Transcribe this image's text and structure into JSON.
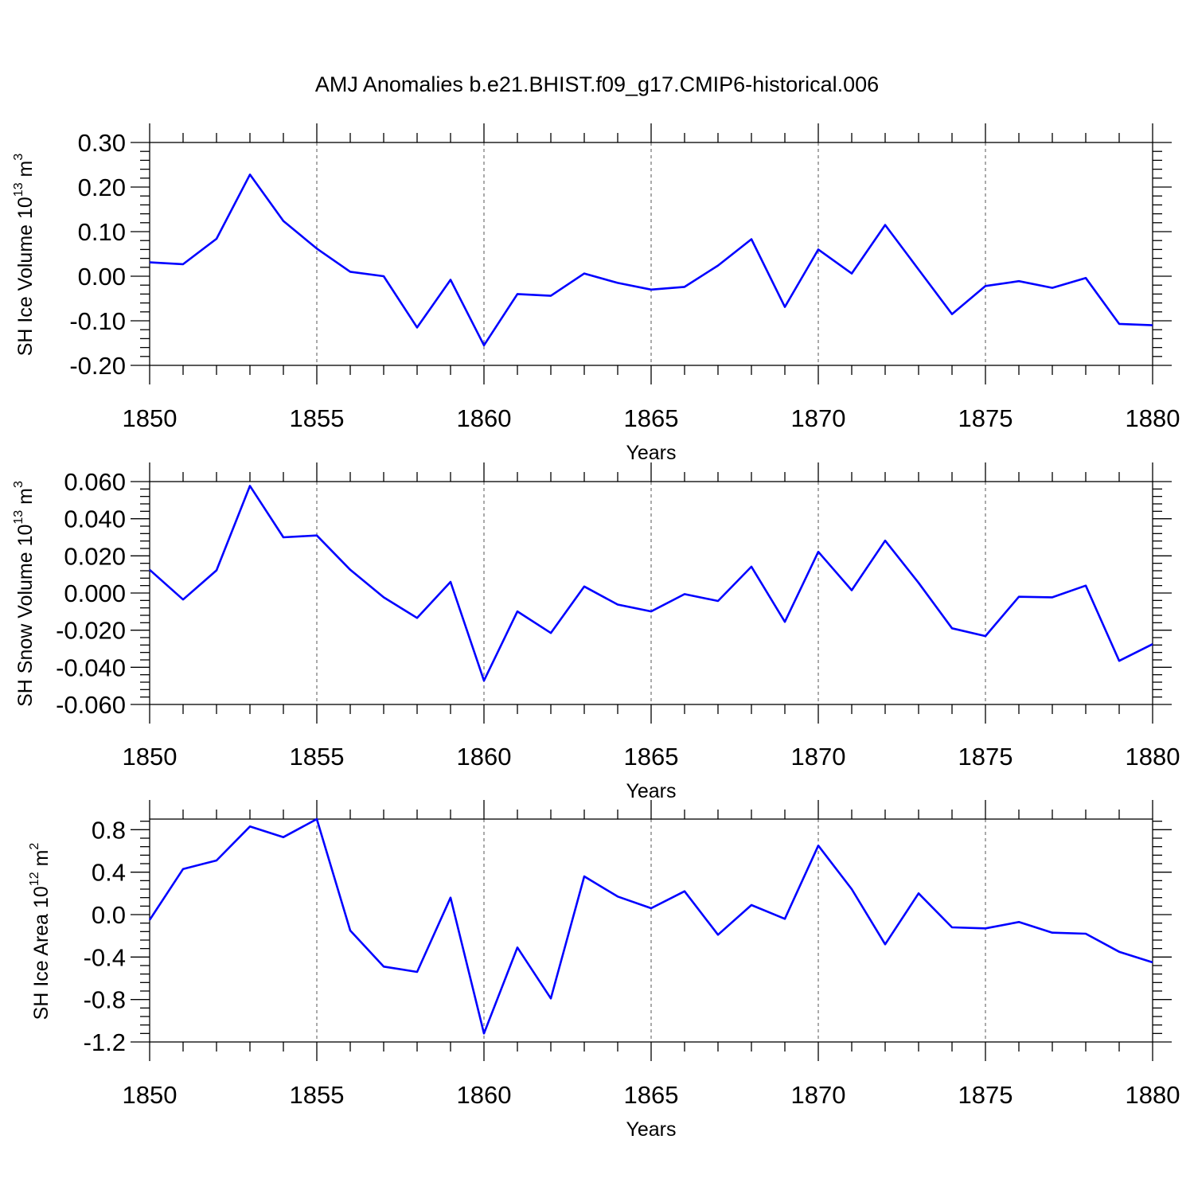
{
  "title": "AMJ Anomalies b.e21.BHIST.f09_g17.CMIP6-historical.006",
  "chart_data": [
    {
      "type": "line",
      "title": "AMJ Anomalies b.e21.BHIST.f09_g17.CMIP6-historical.006",
      "xlabel": "Years",
      "ylabel": "SH Ice Volume",
      "ylabel_units": {
        "base": "10",
        "exp": "13",
        "unit": "m",
        "unit_exp": "3"
      },
      "x": [
        1850,
        1851,
        1852,
        1853,
        1854,
        1855,
        1856,
        1857,
        1858,
        1859,
        1860,
        1861,
        1862,
        1863,
        1864,
        1865,
        1866,
        1867,
        1868,
        1869,
        1870,
        1871,
        1872,
        1873,
        1874,
        1875,
        1876,
        1877,
        1878,
        1879,
        1880
      ],
      "values": [
        0.031,
        0.027,
        0.084,
        0.228,
        0.124,
        0.062,
        0.01,
        0.0,
        -0.115,
        -0.008,
        -0.155,
        -0.04,
        -0.044,
        0.006,
        -0.015,
        -0.03,
        -0.024,
        0.024,
        0.083,
        -0.069,
        0.06,
        0.006,
        0.115,
        0.015,
        -0.085,
        -0.022,
        -0.011,
        -0.026,
        -0.004,
        -0.107,
        -0.11
      ],
      "xlim": [
        1850,
        1880
      ],
      "ylim": [
        -0.2,
        0.3
      ],
      "xticks": [
        "1850",
        "1855",
        "1860",
        "1865",
        "1870",
        "1875",
        "1880"
      ],
      "yticks": [
        "0.30",
        "0.20",
        "0.10",
        "0.00",
        "-0.10",
        "-0.20"
      ],
      "ytick_values": [
        0.3,
        0.2,
        0.1,
        0.0,
        -0.1,
        -0.2
      ],
      "grid": "vertical-dashed",
      "color": "#0000ff"
    },
    {
      "type": "line",
      "xlabel": "Years",
      "ylabel": "SH Snow Volume",
      "ylabel_units": {
        "base": "10",
        "exp": "13",
        "unit": "m",
        "unit_exp": "3"
      },
      "x": [
        1850,
        1851,
        1852,
        1853,
        1854,
        1855,
        1856,
        1857,
        1858,
        1859,
        1860,
        1861,
        1862,
        1863,
        1864,
        1865,
        1866,
        1867,
        1868,
        1869,
        1870,
        1871,
        1872,
        1873,
        1874,
        1875,
        1876,
        1877,
        1878,
        1879,
        1880
      ],
      "values": [
        0.0125,
        -0.0035,
        0.0122,
        0.0577,
        0.03,
        0.031,
        0.0125,
        -0.0023,
        -0.0134,
        0.006,
        -0.0472,
        -0.0099,
        -0.0215,
        0.0035,
        -0.0062,
        -0.0099,
        -0.0006,
        -0.0043,
        0.0142,
        -0.0155,
        0.0222,
        0.0015,
        0.0282,
        0.0055,
        -0.019,
        -0.0232,
        -0.002,
        -0.0023,
        0.004,
        -0.0365,
        -0.0275
      ],
      "xlim": [
        1850,
        1880
      ],
      "ylim": [
        -0.06,
        0.06
      ],
      "xticks": [
        "1850",
        "1855",
        "1860",
        "1865",
        "1870",
        "1875",
        "1880"
      ],
      "yticks": [
        "0.060",
        "0.040",
        "0.020",
        "0.000",
        "-0.020",
        "-0.040",
        "-0.060"
      ],
      "ytick_values": [
        0.06,
        0.04,
        0.02,
        0.0,
        -0.02,
        -0.04,
        -0.06
      ],
      "grid": "vertical-dashed",
      "color": "#0000ff"
    },
    {
      "type": "line",
      "xlabel": "Years",
      "ylabel": "SH Ice Area",
      "ylabel_units": {
        "base": "10",
        "exp": "12",
        "unit": "m",
        "unit_exp": "2"
      },
      "x": [
        1850,
        1851,
        1852,
        1853,
        1854,
        1855,
        1856,
        1857,
        1858,
        1859,
        1860,
        1861,
        1862,
        1863,
        1864,
        1865,
        1866,
        1867,
        1868,
        1869,
        1870,
        1871,
        1872,
        1873,
        1874,
        1875,
        1876,
        1877,
        1878,
        1879,
        1880
      ],
      "values": [
        -0.05,
        0.43,
        0.51,
        0.83,
        0.73,
        0.9,
        -0.15,
        -0.49,
        -0.54,
        0.16,
        -1.12,
        -0.31,
        -0.79,
        0.36,
        0.17,
        0.06,
        0.22,
        -0.19,
        0.09,
        -0.04,
        0.65,
        0.24,
        -0.28,
        0.2,
        -0.12,
        -0.13,
        -0.07,
        -0.17,
        -0.18,
        -0.35,
        -0.45
      ],
      "xlim": [
        1850,
        1880
      ],
      "ylim": [
        -1.2,
        0.9
      ],
      "xticks": [
        "1850",
        "1855",
        "1860",
        "1865",
        "1870",
        "1875",
        "1880"
      ],
      "yticks": [
        "0.8",
        "0.4",
        "0.0",
        "-0.4",
        "-0.8",
        "-1.2"
      ],
      "ytick_values": [
        0.8,
        0.4,
        0.0,
        -0.4,
        -0.8,
        -1.2
      ],
      "grid": "vertical-dashed",
      "color": "#0000ff"
    }
  ]
}
